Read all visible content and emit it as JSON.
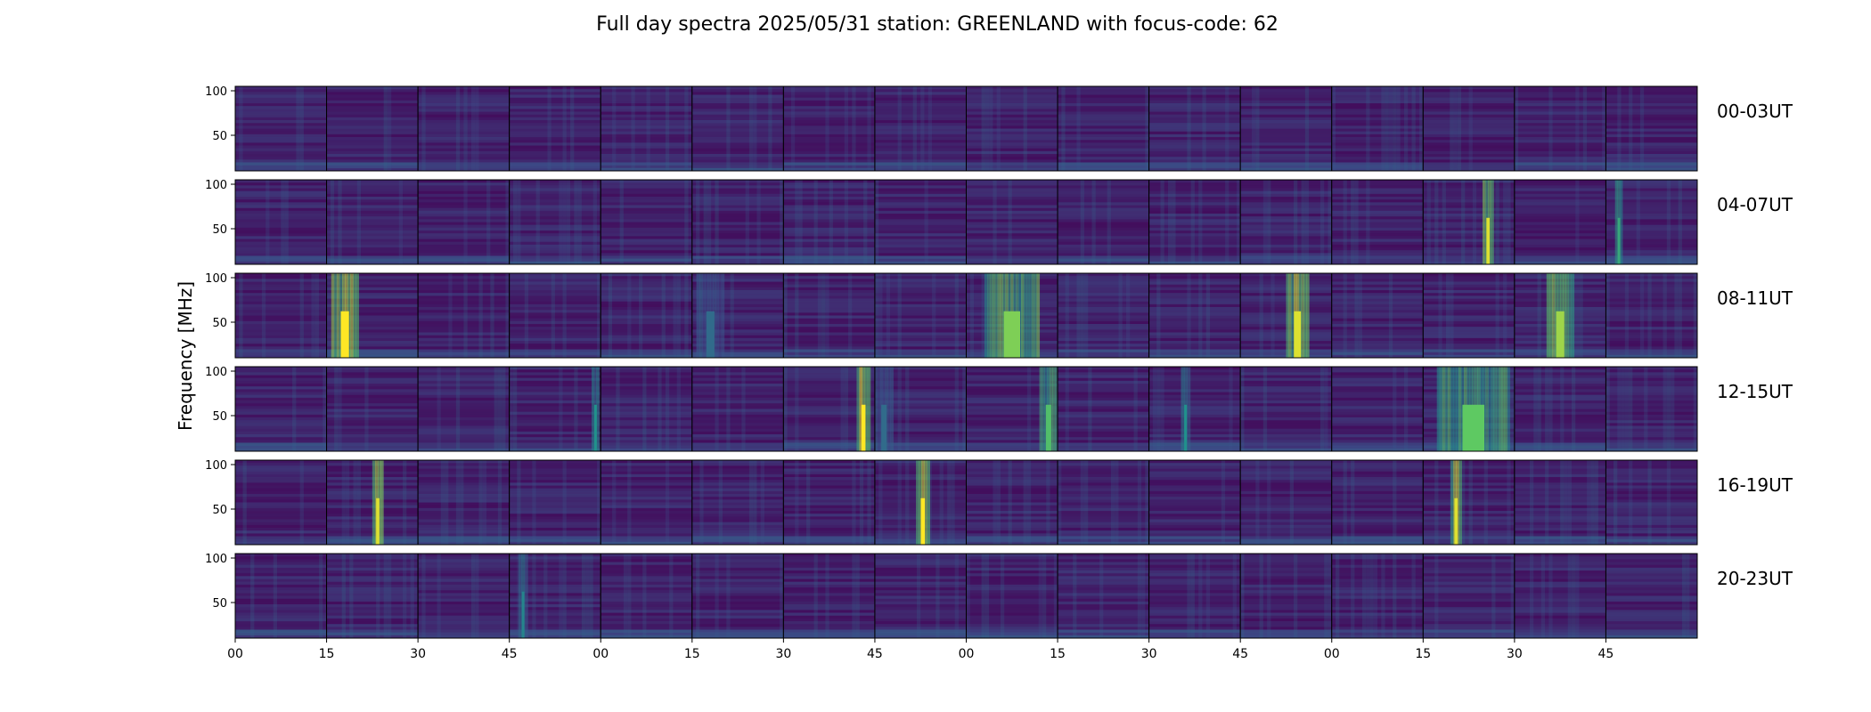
{
  "chart_data": {
    "type": "heatmap",
    "title": "Full day spectra 2025/05/31 station: GREENLAND with focus-code: 62",
    "ylabel": "Frequency [MHz]",
    "xlabel": "",
    "ylim": [
      10,
      105
    ],
    "y_ticks": [
      50,
      100
    ],
    "x_tick_labels": [
      "00",
      "15",
      "30",
      "45",
      "00",
      "15",
      "30",
      "45",
      "00",
      "15",
      "30",
      "45",
      "00",
      "15",
      "30",
      "45"
    ],
    "columns_per_row": 16,
    "rows": [
      {
        "label": "00-03UT",
        "hours": [
          0,
          1,
          2,
          3
        ]
      },
      {
        "label": "04-07UT",
        "hours": [
          4,
          5,
          6,
          7
        ]
      },
      {
        "label": "08-11UT",
        "hours": [
          8,
          9,
          10,
          11
        ]
      },
      {
        "label": "12-15UT",
        "hours": [
          12,
          13,
          14,
          15
        ]
      },
      {
        "label": "16-19UT",
        "hours": [
          16,
          17,
          18,
          19
        ]
      },
      {
        "label": "20-23UT",
        "hours": [
          20,
          21,
          22,
          23
        ]
      }
    ],
    "colormap": [
      "#440154",
      "#3b528b",
      "#21918c",
      "#5ec962",
      "#fde725"
    ],
    "bursts": [
      {
        "row": 1,
        "col": 13,
        "start_frac": 0.65,
        "width_frac": 0.12,
        "intensity": 0.95
      },
      {
        "row": 1,
        "col": 15,
        "start_frac": 0.1,
        "width_frac": 0.08,
        "intensity": 0.6
      },
      {
        "row": 2,
        "col": 1,
        "start_frac": 0.05,
        "width_frac": 0.3,
        "intensity": 1.0
      },
      {
        "row": 2,
        "col": 5,
        "start_frac": 0.05,
        "width_frac": 0.3,
        "intensity": 0.35
      },
      {
        "row": 2,
        "col": 8,
        "start_frac": 0.2,
        "width_frac": 0.6,
        "intensity": 0.8
      },
      {
        "row": 2,
        "col": 11,
        "start_frac": 0.5,
        "width_frac": 0.25,
        "intensity": 0.95
      },
      {
        "row": 2,
        "col": 14,
        "start_frac": 0.35,
        "width_frac": 0.3,
        "intensity": 0.85
      },
      {
        "row": 3,
        "col": 3,
        "start_frac": 0.9,
        "width_frac": 0.08,
        "intensity": 0.5
      },
      {
        "row": 3,
        "col": 6,
        "start_frac": 0.8,
        "width_frac": 0.15,
        "intensity": 1.0
      },
      {
        "row": 3,
        "col": 7,
        "start_frac": 0.0,
        "width_frac": 0.2,
        "intensity": 0.35
      },
      {
        "row": 3,
        "col": 8,
        "start_frac": 0.8,
        "width_frac": 0.2,
        "intensity": 0.7
      },
      {
        "row": 3,
        "col": 10,
        "start_frac": 0.35,
        "width_frac": 0.1,
        "intensity": 0.5
      },
      {
        "row": 3,
        "col": 13,
        "start_frac": 0.15,
        "width_frac": 0.8,
        "intensity": 0.75
      },
      {
        "row": 4,
        "col": 1,
        "start_frac": 0.5,
        "width_frac": 0.12,
        "intensity": 0.95
      },
      {
        "row": 4,
        "col": 7,
        "start_frac": 0.45,
        "width_frac": 0.15,
        "intensity": 1.0
      },
      {
        "row": 4,
        "col": 13,
        "start_frac": 0.3,
        "width_frac": 0.12,
        "intensity": 0.95
      },
      {
        "row": 5,
        "col": 3,
        "start_frac": 0.1,
        "width_frac": 0.1,
        "intensity": 0.45
      }
    ]
  }
}
